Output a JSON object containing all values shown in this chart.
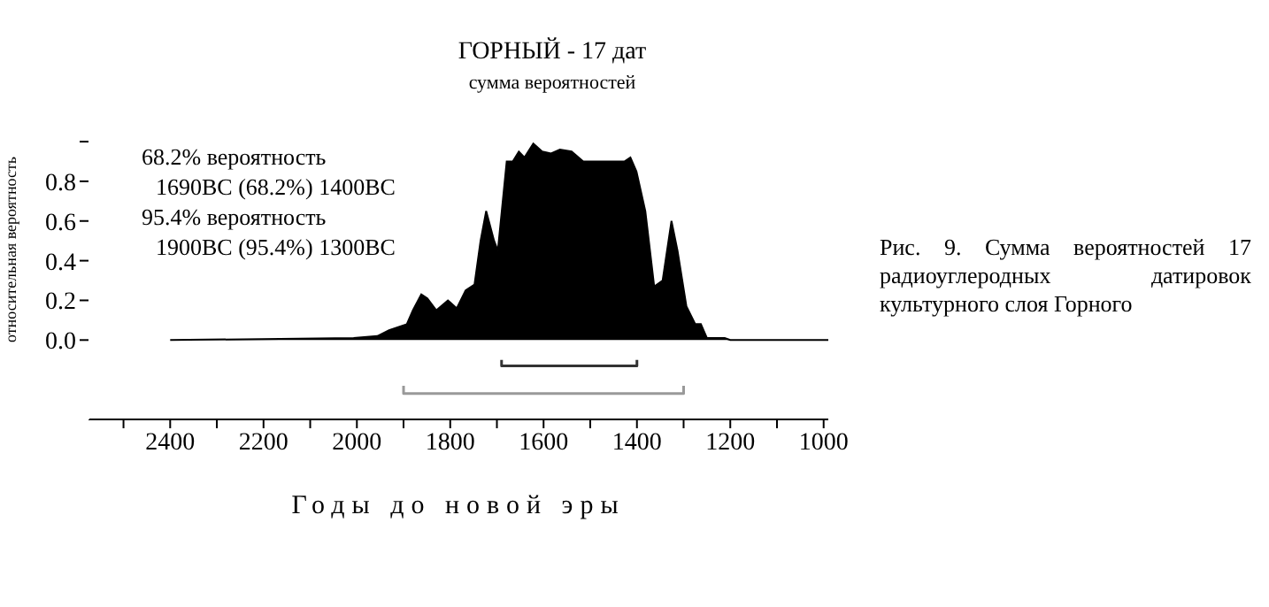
{
  "chart_data": {
    "type": "area",
    "title": "ГОРНЫЙ - 17 дат",
    "subtitle": "сумма вероятностей",
    "xlabel": "Годы до новой эры",
    "ylabel": "относительная вероятность",
    "annotations": [
      "68.2% вероятность",
      "1690BC (68.2%) 1400BC",
      "95.4% вероятность",
      "1900BC (95.4%) 1300BC",
      "Рис. 9. Сумма вероятностей 17 радиоуглеродных датировок культурного слоя Горного"
    ],
    "xlim": [
      2575,
      990
    ],
    "ylim": [
      -0.4,
      1.58
    ],
    "xticks": [
      {
        "value": 2500,
        "label": null
      },
      2400,
      {
        "value": 2300,
        "label": null
      },
      2200,
      {
        "value": 2100,
        "label": null
      },
      2000,
      {
        "value": 1900,
        "label": null
      },
      1800,
      {
        "value": 1700,
        "label": null
      },
      1600,
      {
        "value": 1500,
        "label": null
      },
      1400,
      {
        "value": 1300,
        "label": null
      },
      1200,
      {
        "value": 1100,
        "label": null
      },
      1000
    ],
    "yticks": [
      {
        "value": 0,
        "label": "0.0"
      },
      {
        "value": 0.2,
        "label": "0.2"
      },
      {
        "value": 0.4,
        "label": "0.4"
      },
      {
        "value": 0.6,
        "label": "0.6"
      },
      {
        "value": 0.8,
        "label": "0.8"
      },
      {
        "value": 1,
        "label": null
      }
    ],
    "series": [
      {
        "color": "#000000",
        "x": [
          2400,
          2007,
          1956,
          1931,
          1893,
          1880,
          1862,
          1849,
          1830,
          1805,
          1786,
          1767,
          1748,
          1735,
          1723,
          1706,
          1698,
          1679,
          1666,
          1653,
          1641,
          1622,
          1603,
          1584,
          1565,
          1540,
          1515,
          1452,
          1427,
          1414,
          1401,
          1382,
          1363,
          1345,
          1326,
          1313,
          1294,
          1275,
          1263,
          1250,
          1212,
          1200,
          990
        ],
        "values": [
          0,
          0.01,
          0.02,
          0.05,
          0.08,
          0.15,
          0.23,
          0.21,
          0.15,
          0.2,
          0.16,
          0.25,
          0.28,
          0.5,
          0.65,
          0.5,
          0.45,
          0.9,
          0.9,
          0.95,
          0.92,
          0.99,
          0.95,
          0.94,
          0.96,
          0.95,
          0.9,
          0.9,
          0.9,
          0.92,
          0.85,
          0.65,
          0.27,
          0.3,
          0.6,
          0.45,
          0.17,
          0.08,
          0.08,
          0.01,
          0.01,
          0,
          0
        ]
      },
      {
        "type": "line",
        "color": "#333333",
        "x": [
          1690,
          1690,
          1400,
          1400
        ],
        "values": [
          -0.1,
          -0.13,
          -0.13,
          -0.1
        ]
      },
      {
        "type": "line",
        "color": "#999999",
        "x": [
          1900,
          1900,
          1300,
          1300
        ],
        "values": [
          -0.23,
          -0.27,
          -0.27,
          -0.23
        ]
      }
    ]
  }
}
